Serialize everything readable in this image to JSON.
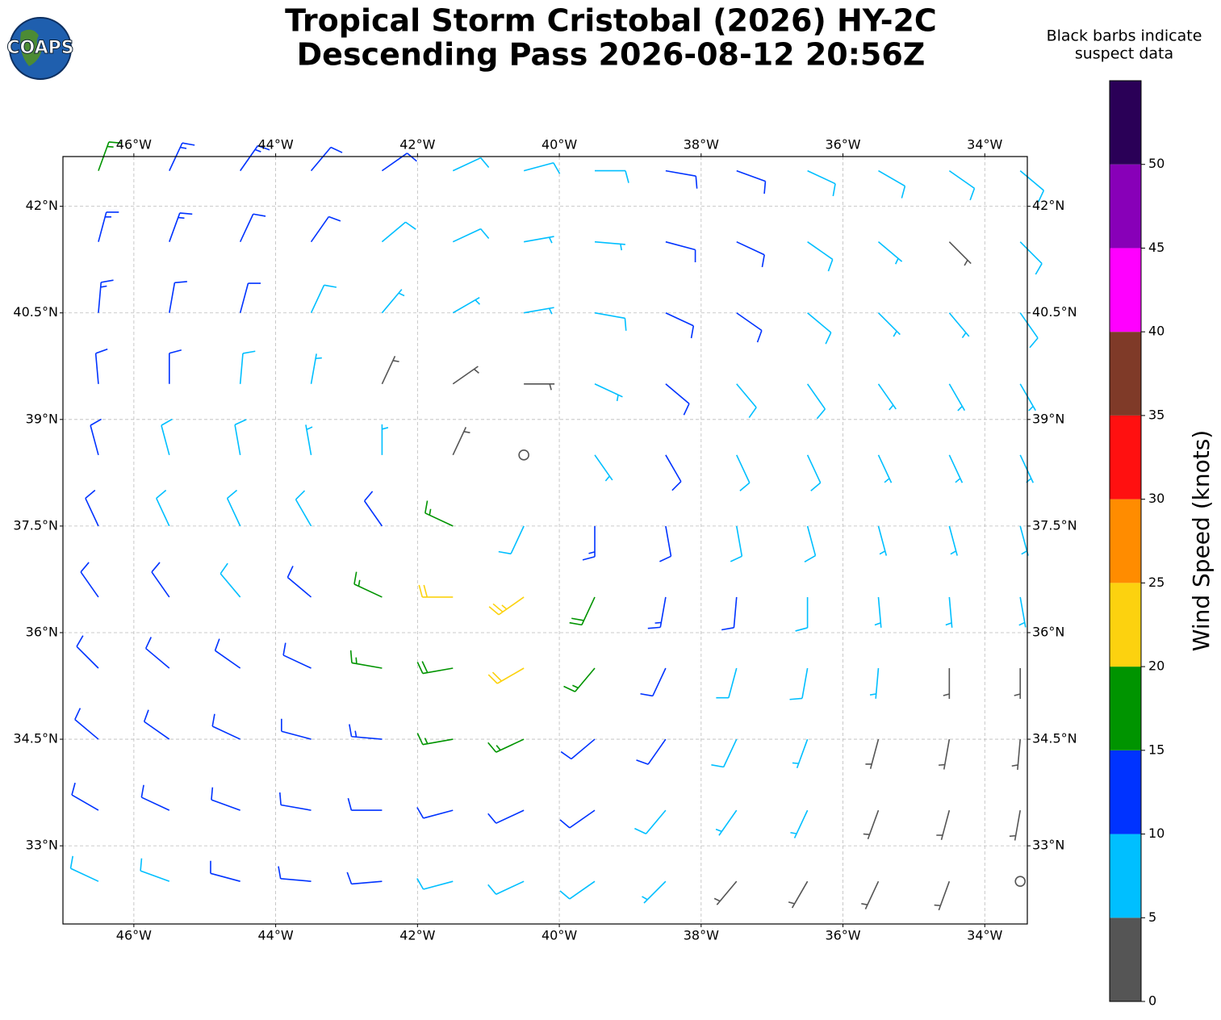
{
  "header": {
    "title": [
      "Tropical Storm Cristobal (2026) HY-2C",
      "Descending Pass 2026-08-12 20:56Z"
    ],
    "logo": "COAPS",
    "note": [
      "Black barbs indicate",
      "suspect data"
    ]
  },
  "chart_data": {
    "type": "barbs",
    "xlim": [
      -47,
      -33.4
    ],
    "ylim": [
      31.9,
      42.7
    ],
    "grid": true,
    "xticks": [
      {
        "value": -46,
        "label": "46°W"
      },
      {
        "value": -44,
        "label": "44°W"
      },
      {
        "value": -42,
        "label": "42°W"
      },
      {
        "value": -40,
        "label": "40°W"
      },
      {
        "value": -38,
        "label": "38°W"
      },
      {
        "value": -36,
        "label": "36°W"
      },
      {
        "value": -34,
        "label": "34°W"
      }
    ],
    "yticks": [
      {
        "value": 33,
        "label": "33°N"
      },
      {
        "value": 34.5,
        "label": "34.5°N"
      },
      {
        "value": 36,
        "label": "36°N"
      },
      {
        "value": 37.5,
        "label": "37.5°N"
      },
      {
        "value": 39,
        "label": "39°N"
      },
      {
        "value": 40.5,
        "label": "40.5°N"
      },
      {
        "value": 42,
        "label": "42°N"
      }
    ],
    "lon": [
      -46.5,
      -45.5,
      -44.5,
      -43.5,
      -42.5,
      -41.5,
      -40.5,
      -39.5,
      -38.5,
      -37.5,
      -36.5,
      -35.5,
      -34.5,
      -33.5
    ],
    "lat": [
      42.5,
      41.5,
      40.5,
      39.5,
      38.5,
      37.5,
      36.5,
      35.5,
      34.5,
      33.5,
      32.5
    ],
    "speed": [
      [
        16,
        14,
        13,
        12,
        10,
        9,
        8,
        8,
        10,
        11,
        9,
        8,
        8,
        9
      ],
      [
        14,
        13,
        12,
        10,
        9,
        8,
        7,
        7,
        11,
        12,
        9,
        7,
        4,
        8
      ],
      [
        13,
        12,
        10,
        8,
        7,
        6,
        6,
        8,
        11,
        10,
        8,
        7,
        5,
        8
      ],
      [
        12,
        10,
        8,
        7,
        4,
        3,
        4,
        7,
        10,
        9,
        8,
        7,
        6,
        7
      ],
      [
        11,
        9,
        8,
        7,
        6,
        4,
        2,
        6,
        10,
        9,
        8,
        7,
        7,
        7
      ],
      [
        10,
        9,
        8,
        9,
        11,
        15,
        8,
        14,
        12,
        9,
        8,
        7,
        7,
        6
      ],
      [
        11,
        10,
        9,
        12,
        17,
        22,
        23,
        18,
        14,
        10,
        8,
        7,
        6,
        5
      ],
      [
        12,
        11,
        10,
        12,
        16,
        19,
        20,
        16,
        12,
        9,
        8,
        6,
        4,
        3
      ],
      [
        12,
        11,
        10,
        11,
        13,
        15,
        15,
        12,
        10,
        8,
        6,
        4,
        3,
        3
      ],
      [
        10,
        10,
        11,
        11,
        11,
        11,
        11,
        10,
        8,
        6,
        5,
        4,
        3,
        3
      ],
      [
        8,
        9,
        10,
        10,
        10,
        9,
        9,
        8,
        6,
        4,
        3,
        4,
        3,
        2
      ]
    ],
    "direction": [
      [
        20,
        25,
        35,
        40,
        55,
        65,
        75,
        90,
        100,
        110,
        115,
        120,
        125,
        130
      ],
      [
        15,
        20,
        25,
        35,
        50,
        65,
        80,
        95,
        105,
        115,
        125,
        130,
        135,
        135
      ],
      [
        5,
        10,
        15,
        25,
        40,
        60,
        80,
        100,
        115,
        125,
        130,
        135,
        140,
        145
      ],
      [
        355,
        0,
        5,
        10,
        25,
        55,
        90,
        115,
        130,
        140,
        145,
        145,
        150,
        150
      ],
      [
        345,
        345,
        350,
        350,
        0,
        25,
        115,
        145,
        150,
        155,
        155,
        155,
        155,
        155
      ],
      [
        335,
        335,
        335,
        330,
        325,
        295,
        205,
        180,
        170,
        170,
        165,
        165,
        165,
        165
      ],
      [
        325,
        325,
        320,
        310,
        295,
        270,
        235,
        205,
        190,
        185,
        180,
        175,
        175,
        170
      ],
      [
        315,
        310,
        305,
        295,
        280,
        260,
        240,
        220,
        205,
        195,
        190,
        185,
        180,
        180
      ],
      [
        310,
        305,
        295,
        285,
        275,
        260,
        245,
        230,
        215,
        205,
        200,
        195,
        190,
        185
      ],
      [
        300,
        295,
        290,
        280,
        270,
        255,
        245,
        235,
        220,
        215,
        205,
        200,
        195,
        190
      ],
      [
        295,
        290,
        285,
        275,
        265,
        255,
        245,
        235,
        225,
        220,
        210,
        205,
        200,
        195
      ]
    ],
    "colorbar": {
      "label": "Wind Speed (knots)",
      "clim": [
        0,
        55
      ],
      "ticks": [
        0,
        5,
        10,
        15,
        20,
        25,
        30,
        35,
        40,
        45,
        50
      ],
      "colors": [
        "#555555",
        "#00bfff",
        "#0033ff",
        "#009400",
        "#fcd20f",
        "#ff8c00",
        "#ff1010",
        "#7f3a28",
        "#ff00ff",
        "#8800b8",
        "#2a0057"
      ]
    }
  }
}
